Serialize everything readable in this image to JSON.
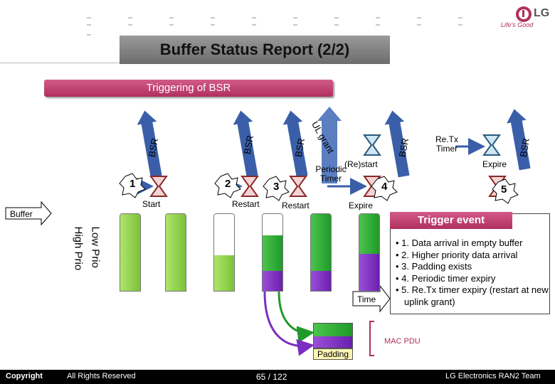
{
  "header": {
    "title": "Buffer Status Report (2/2)",
    "subtitle": "Triggering of BSR",
    "logo_text": "LG",
    "logo_tagline": "Life's Good"
  },
  "timeline": {
    "ul_grant_label": "UL grant",
    "bsr_label": "BSR",
    "steps": [
      {
        "num": "1",
        "label": "Start"
      },
      {
        "num": "2",
        "label": "Restart"
      },
      {
        "num": "3",
        "label": "Restart"
      },
      {
        "num": "4",
        "label": "Expire"
      },
      {
        "num": "5",
        "label": ""
      }
    ],
    "periodic_timer_label": "Periodic Timer",
    "restart_label": "(Re)start",
    "retx_timer_label": "Re.Tx Timer",
    "retx_expire_label": "Expire"
  },
  "buffer": {
    "label": "Buffer",
    "low_prio": "Low Prio",
    "high_prio": "High Prio",
    "time_label": "Time",
    "mac_pdu_label": "MAC PDU",
    "padding_label": "Padding"
  },
  "trigger_event": {
    "title": "Trigger event",
    "items": [
      "• 1. Data arrival in empty buffer",
      "• 2. Higher priority data arrival",
      "• 3. Padding exists",
      "• 4. Periodic timer expiry",
      "• 5. Re.Tx timer expiry (restart at new uplink grant)"
    ]
  },
  "footer": {
    "copyright": "Copyright",
    "rights": "All Rights Reserved",
    "page": "65 / 122",
    "team": "LG Electronics RAN2 Team"
  },
  "colors": {
    "accent_pink": "#c0386c",
    "green_light": "#9ad456",
    "green_dark": "#1f9a2a",
    "purple": "#7a2fc0",
    "arrow_blue": "#3a5fa8"
  }
}
